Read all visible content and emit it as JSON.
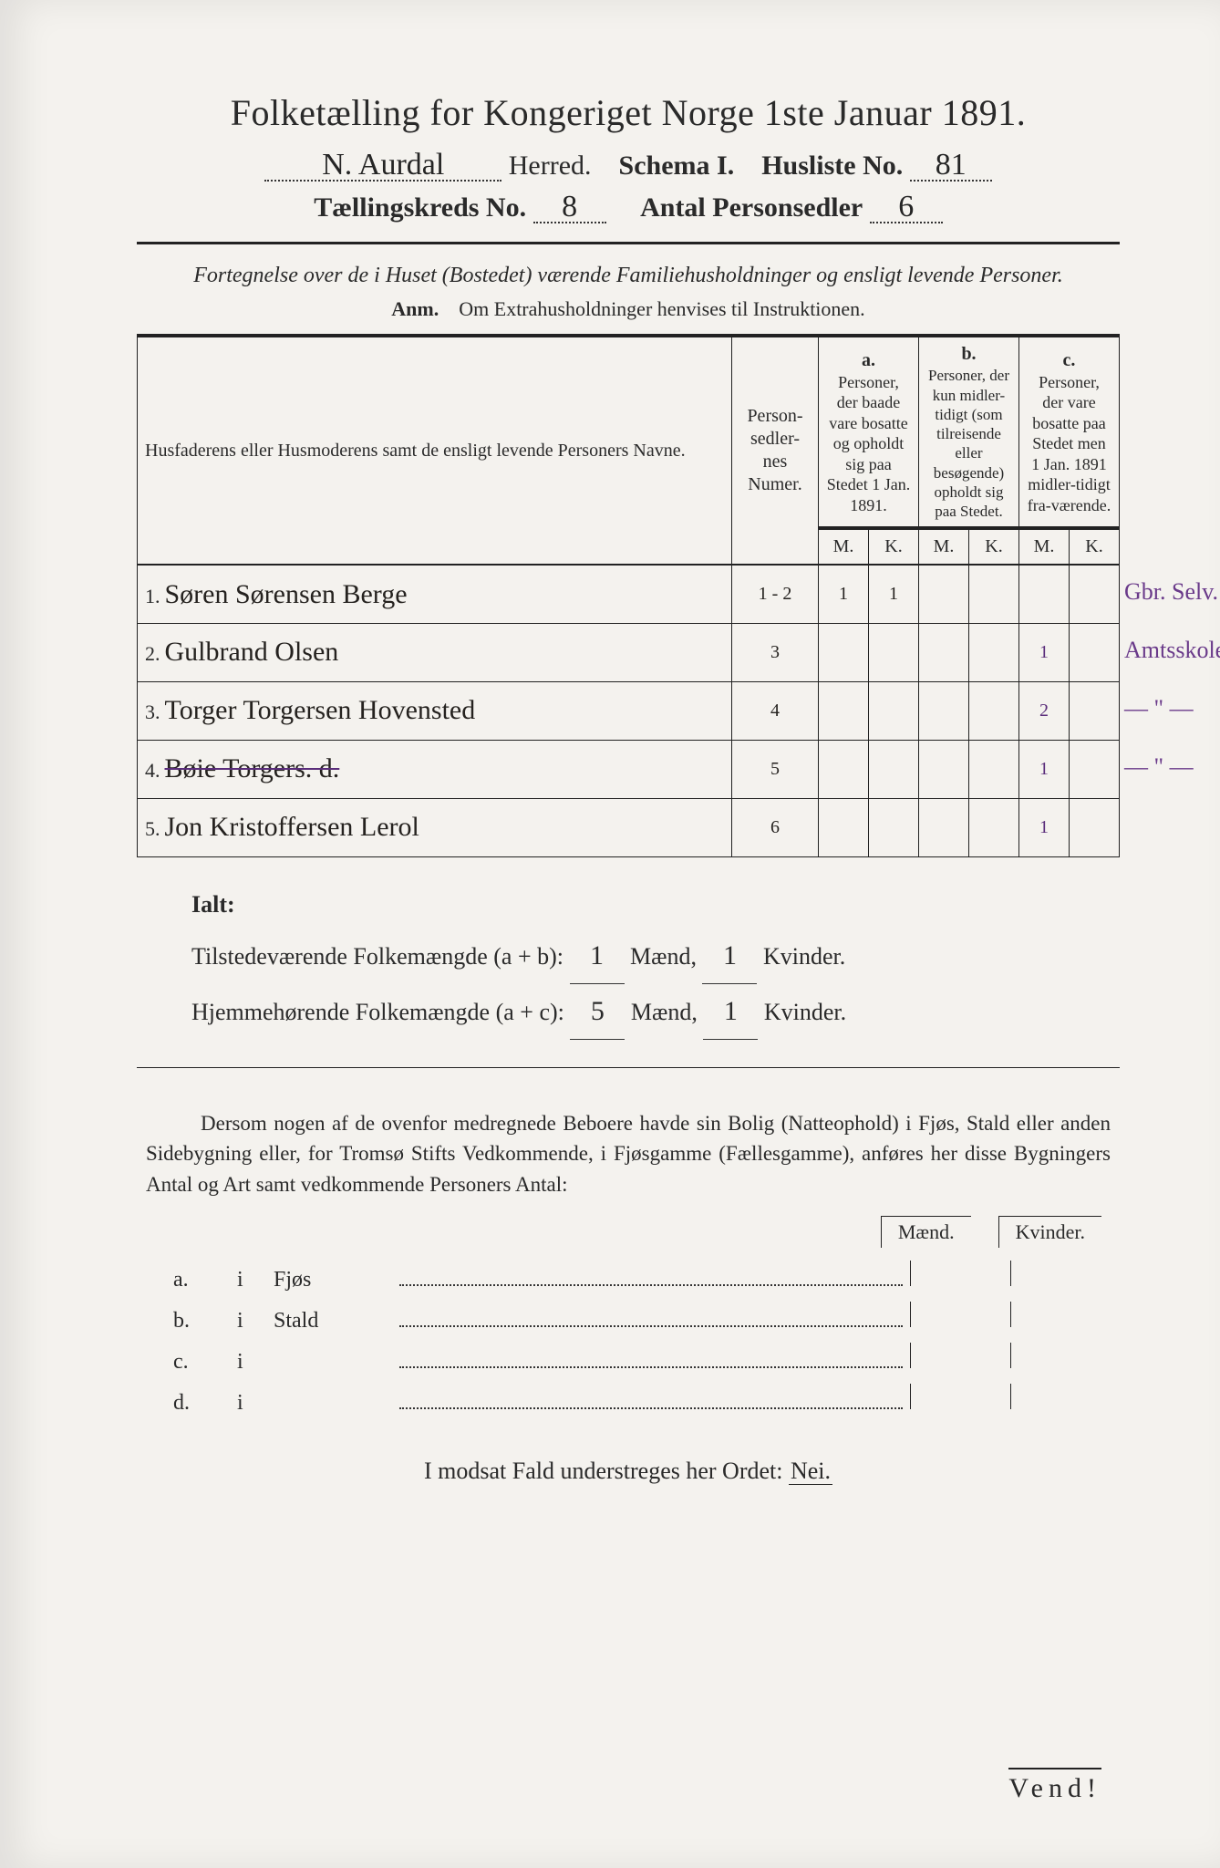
{
  "title": "Folketælling for Kongeriget Norge 1ste Januar 1891.",
  "header2": {
    "herred_value": "N. Aurdal",
    "herred_label": "Herred.",
    "schema_label": "Schema I.",
    "husliste_label": "Husliste No.",
    "husliste_value": "81"
  },
  "header3": {
    "kreds_label": "Tællingskreds No.",
    "kreds_value": "8",
    "antal_label": "Antal Personsedler",
    "antal_value": "6"
  },
  "fortegnelse": "Fortegnelse over de i Huset (Bostedet) værende Familiehusholdninger og ensligt levende Personer.",
  "anm_label": "Anm.",
  "anm_text": "Om Extrahusholdninger henvises til Instruktionen.",
  "table": {
    "col_names": "Husfaderens eller Husmoderens samt de ensligt levende Personers Navne.",
    "col_num": "Person-sedler-nes Numer.",
    "col_a_head": "a.",
    "col_a": "Personer, der baade vare bosatte og opholdt sig paa Stedet 1 Jan. 1891.",
    "col_b_head": "b.",
    "col_b": "Personer, der kun midler-tidigt (som tilreisende eller besøgende) opholdt sig paa Stedet.",
    "col_c_head": "c.",
    "col_c": "Personer, der vare bosatte paa Stedet men 1 Jan. 1891 midler-tidigt fra-værende.",
    "mk_m": "M.",
    "mk_k": "K.",
    "rows": [
      {
        "n": "1.",
        "name": "Søren Sørensen Berge",
        "num": "1 - 2",
        "a_m": "1",
        "a_k": "1",
        "b_m": "",
        "b_k": "",
        "c_m": "",
        "c_k": "",
        "note": "Gbr. Selv."
      },
      {
        "n": "2.",
        "name": "Gulbrand Olsen",
        "num": "3",
        "a_m": "",
        "a_k": "",
        "b_m": "",
        "b_k": "",
        "c_m": "1",
        "c_k": "",
        "note": "Amtsskoleelev"
      },
      {
        "n": "3.",
        "name": "Torger Torgersen Hovensted",
        "num": "4",
        "a_m": "",
        "a_k": "",
        "b_m": "",
        "b_k": "",
        "c_m": "2",
        "c_k": "",
        "note": "— \" —"
      },
      {
        "n": "4.",
        "name": "Bøie Torgers. d.",
        "num": "5",
        "a_m": "",
        "a_k": "",
        "b_m": "",
        "b_k": "",
        "c_m": "1",
        "c_k": "",
        "note": "— \" —",
        "struck": true
      },
      {
        "n": "5.",
        "name": "Jon Kristoffersen Lerol",
        "num": "6",
        "a_m": "",
        "a_k": "",
        "b_m": "",
        "b_k": "",
        "c_m": "1",
        "c_k": "",
        "note": ""
      }
    ]
  },
  "ialt": {
    "label": "Ialt:",
    "line1_label": "Tilstedeværende Folkemængde (a + b):",
    "line1_m": "1",
    "line1_k": "1",
    "line2_label": "Hjemmehørende Folkemængde (a + c):",
    "line2_m": "5",
    "line2_k": "1",
    "maend": "Mænd,",
    "kvinder": "Kvinder."
  },
  "dersom": "Dersom nogen af de ovenfor medregnede Beboere havde sin Bolig (Natteophold) i Fjøs, Stald eller anden Sidebygning eller, for Tromsø Stifts Vedkommende, i Fjøsgamme (Fællesgamme), anføres her disse Bygningers Antal og Art samt vedkommende Personers Antal:",
  "buildings": {
    "mk_m": "Mænd.",
    "mk_k": "Kvinder.",
    "rows": [
      {
        "label": "a.",
        "i": "i",
        "name": "Fjøs"
      },
      {
        "label": "b.",
        "i": "i",
        "name": "Stald"
      },
      {
        "label": "c.",
        "i": "i",
        "name": ""
      },
      {
        "label": "d.",
        "i": "i",
        "name": ""
      }
    ]
  },
  "nei_line_pre": "I modsat Fald understreges her Ordet: ",
  "nei_word": "Nei.",
  "vend": "Vend!"
}
